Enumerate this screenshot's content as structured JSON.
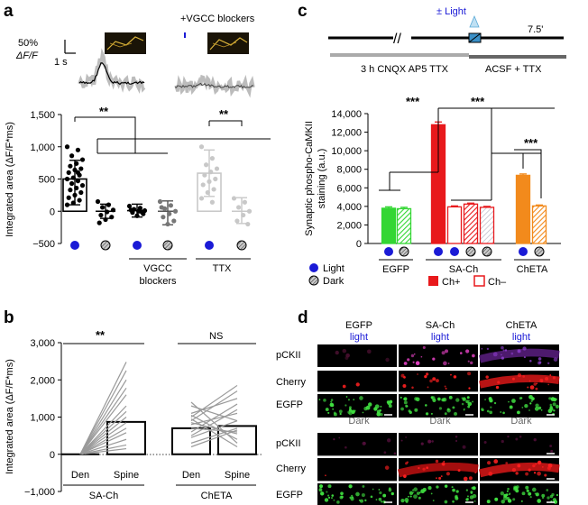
{
  "panel_labels": {
    "a": "a",
    "b": "b",
    "c": "c",
    "d": "d"
  },
  "panel_a": {
    "scalebar_y": "50%",
    "scalebar_y_unit": "ΔF/F",
    "scalebar_x": "1 s",
    "trace_label_right": "+VGCC blockers",
    "group_label_vgcc": "VGCC\nblockers",
    "group_label_ttx": "TTX",
    "sig_top": "**",
    "sig_right": "**",
    "legend_icons": [
      "light-dot",
      "dark-dot",
      "light-dot",
      "dark-dot",
      "light-dot",
      "dark-dot"
    ],
    "colors": {
      "light": "#1a1ad6",
      "dark_fill": "#aaaaaa"
    }
  },
  "panel_b": {
    "sig_left": "**",
    "sig_right": "NS",
    "group_left": "SA-Ch",
    "group_right": "ChETA",
    "tick_den": "Den",
    "tick_spine": "Spine"
  },
  "panel_c": {
    "light_label": "± Light",
    "time_label": "7.5'",
    "bar1_label": "3 h CNQX AP5 TTX",
    "bar2_label": "ACSF + TTX",
    "legend": {
      "light": "Light",
      "dark": "Dark",
      "chplus": "Ch+",
      "chminus": "Ch–"
    },
    "groups": [
      "EGFP",
      "SA-Ch",
      "ChETA"
    ],
    "sig": [
      "***",
      "***",
      "***"
    ],
    "colors": {
      "egfp": "#33d633",
      "sach": "#e8191c",
      "cheta": "#f28a1c"
    }
  },
  "panel_d": {
    "cols": [
      "EGFP",
      "SA-Ch",
      "ChETA"
    ],
    "top_cond": "light",
    "bottom_cond": "Dark",
    "rows": [
      "pCKII",
      "Cherry",
      "EGFP"
    ]
  },
  "chart_data": [
    {
      "panel": "a",
      "type": "scatter",
      "ylabel": "Integrated area (ΔF/F*ms)",
      "ylim": [
        -500,
        1500
      ],
      "yticks": [
        -500,
        0,
        500,
        1000,
        1500
      ],
      "ytick_labels": [
        "−500",
        "0",
        "500",
        "1,000",
        "1,500"
      ],
      "categories": [
        "Light",
        "Dark",
        "VGCC Light",
        "VGCC Dark",
        "TTX Light",
        "TTX Dark"
      ],
      "means": [
        500,
        0,
        10,
        0,
        590,
        0
      ],
      "sd": [
        [
          100,
          790
        ],
        [
          -110,
          110
        ],
        [
          -90,
          110
        ],
        [
          -210,
          160
        ],
        [
          230,
          950
        ],
        [
          -190,
          210
        ]
      ],
      "points": [
        [
          1000,
          950,
          860,
          800,
          740,
          700,
          660,
          640,
          600,
          560,
          520,
          500,
          470,
          430,
          400,
          360,
          330,
          290,
          250,
          210,
          170,
          130,
          100,
          600
        ],
        [
          150,
          100,
          60,
          20,
          -10,
          -60,
          -90,
          -130,
          -180
        ],
        [
          80,
          50,
          30,
          10,
          0,
          -20,
          -40,
          -70,
          20,
          -10
        ],
        [
          150,
          90,
          40,
          0,
          -40,
          -90,
          -150,
          -200,
          60
        ],
        [
          1000,
          820,
          720,
          660,
          610,
          560,
          500,
          460,
          410,
          340,
          290,
          200,
          140
        ],
        [
          200,
          140,
          60,
          0,
          -60,
          -150,
          -200
        ]
      ]
    },
    {
      "panel": "b",
      "type": "bar",
      "ylabel": "Integrated area (ΔF/F*ms)",
      "ylim": [
        -1000,
        3000
      ],
      "yticks": [
        -1000,
        0,
        1000,
        2000,
        3000
      ],
      "ytick_labels": [
        "−1,000",
        "0",
        "1,000",
        "2,000",
        "3,000"
      ],
      "series": [
        {
          "name": "SA-Ch",
          "den": 0,
          "spine": 870,
          "pairs": [
            [
              0,
              2480
            ],
            [
              0,
              2250
            ],
            [
              0,
              2000
            ],
            [
              0,
              1780
            ],
            [
              0,
              1600
            ],
            [
              0,
              1300
            ],
            [
              0,
              1150
            ],
            [
              0,
              1000
            ],
            [
              0,
              850
            ],
            [
              0,
              700
            ],
            [
              0,
              580
            ],
            [
              0,
              400
            ],
            [
              0,
              250
            ],
            [
              0,
              150
            ]
          ]
        },
        {
          "name": "ChETA",
          "den": 700,
          "spine": 760,
          "pairs": [
            [
              1000,
              1850
            ],
            [
              1100,
              1500
            ],
            [
              900,
              1700
            ],
            [
              600,
              1350
            ],
            [
              1300,
              900
            ],
            [
              800,
              1100
            ],
            [
              450,
              900
            ],
            [
              1050,
              400
            ],
            [
              950,
              200
            ],
            [
              700,
              600
            ],
            [
              200,
              650
            ],
            [
              500,
              1200
            ],
            [
              300,
              700
            ],
            [
              1400,
              300
            ],
            [
              850,
              550
            ]
          ]
        }
      ]
    },
    {
      "panel": "c",
      "type": "bar",
      "ylabel": "Synaptic phospho-CaMKII\nstaining (a.u.)",
      "ylim": [
        0,
        14000
      ],
      "yticks": [
        0,
        2000,
        4000,
        6000,
        8000,
        10000,
        12000,
        14000
      ],
      "ytick_labels": [
        "0",
        "2,000",
        "4,000",
        "6,000",
        "8,000",
        "10,000",
        "12,000",
        "14,000"
      ],
      "bars": [
        {
          "group": "EGFP",
          "cond": "light",
          "value": 3800,
          "err": 150,
          "style": "solid",
          "color": "#33d633"
        },
        {
          "group": "EGFP",
          "cond": "dark",
          "value": 3750,
          "err": 150,
          "style": "hatch",
          "color": "#33d633"
        },
        {
          "group": "SA-Ch",
          "cond": "light",
          "ch": "+",
          "value": 12800,
          "err": 300,
          "style": "solid",
          "color": "#e8191c"
        },
        {
          "group": "SA-Ch",
          "cond": "light",
          "ch": "-",
          "value": 3950,
          "err": 100,
          "style": "open",
          "color": "#e8191c"
        },
        {
          "group": "SA-Ch",
          "cond": "dark",
          "ch": "+",
          "value": 4250,
          "err": 100,
          "style": "hatch",
          "color": "#e8191c"
        },
        {
          "group": "SA-Ch",
          "cond": "dark",
          "ch": "-",
          "value": 3900,
          "err": 100,
          "style": "hatch-open",
          "color": "#e8191c"
        },
        {
          "group": "ChETA",
          "cond": "light",
          "value": 7350,
          "err": 150,
          "style": "solid",
          "color": "#f28a1c"
        },
        {
          "group": "ChETA",
          "cond": "dark",
          "value": 4050,
          "err": 100,
          "style": "hatch",
          "color": "#f28a1c"
        }
      ]
    }
  ]
}
